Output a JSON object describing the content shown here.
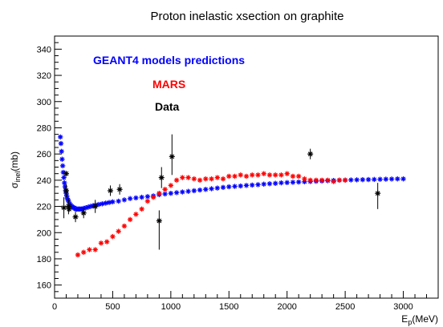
{
  "chart_data": {
    "type": "scatter",
    "title": "Proton inelastic xsection on graphite",
    "xlabel": {
      "main": "E",
      "sub": "p",
      "suffix": "(MeV)"
    },
    "ylabel": {
      "main": "σ",
      "sub": "inel",
      "suffix": "(mb)"
    },
    "xlim": [
      0,
      3300
    ],
    "ylim": [
      150,
      350
    ],
    "x_ticks": [
      0,
      500,
      1000,
      1500,
      2000,
      2500,
      3000
    ],
    "y_ticks": [
      160,
      180,
      200,
      220,
      240,
      260,
      280,
      300,
      320,
      340
    ],
    "colors": {
      "geant4": "#0000ff",
      "mars": "#ff0000",
      "data": "#000000"
    },
    "legend": [
      {
        "text": "GEANT4 models predictions",
        "color": "#0000ff"
      },
      {
        "text": "MARS",
        "color": "#ff0000"
      },
      {
        "text": "Data",
        "color": "#000000"
      }
    ],
    "series": [
      {
        "key": "geant4",
        "x": [
          50,
          55,
          60,
          65,
          70,
          75,
          80,
          85,
          90,
          95,
          100,
          105,
          110,
          115,
          120,
          130,
          140,
          150,
          160,
          170,
          180,
          190,
          200,
          210,
          220,
          230,
          240,
          250,
          270,
          290,
          310,
          330,
          350,
          380,
          410,
          440,
          470,
          500,
          550,
          600,
          650,
          700,
          750,
          800,
          850,
          900,
          950,
          1000,
          1050,
          1100,
          1150,
          1200,
          1250,
          1300,
          1350,
          1400,
          1450,
          1500,
          1550,
          1600,
          1650,
          1700,
          1750,
          1800,
          1850,
          1900,
          1950,
          2000,
          2050,
          2100,
          2150,
          2200,
          2250,
          2300,
          2350,
          2400,
          2450,
          2500,
          2550,
          2600,
          2650,
          2700,
          2750,
          2800,
          2850,
          2900,
          2950,
          3000
        ],
        "y": [
          273,
          268,
          262,
          256,
          251,
          246,
          242,
          238,
          235,
          232,
          230,
          228,
          226,
          225,
          224,
          222,
          221,
          220,
          219,
          219,
          218,
          218,
          218,
          218,
          218,
          218,
          218,
          218.5,
          219,
          219.5,
          220,
          220.5,
          221,
          221.5,
          222,
          222.5,
          223,
          223.5,
          224,
          225,
          226,
          226.5,
          227,
          227.5,
          228,
          229,
          229.5,
          230,
          230.5,
          231,
          231.5,
          232,
          232.5,
          233,
          233.5,
          234,
          234.5,
          235,
          235.3,
          235.6,
          236,
          236.3,
          236.6,
          237,
          237.3,
          237.6,
          238,
          238.2,
          238.4,
          238.6,
          238.8,
          239,
          239.2,
          239.4,
          239.6,
          239.8,
          240,
          240.1,
          240.2,
          240.3,
          240.4,
          240.5,
          240.6,
          240.7,
          240.8,
          240.9,
          241,
          241
        ]
      },
      {
        "key": "mars",
        "x": [
          200,
          250,
          300,
          350,
          400,
          450,
          500,
          550,
          600,
          650,
          700,
          750,
          800,
          850,
          900,
          950,
          1000,
          1050,
          1100,
          1150,
          1200,
          1250,
          1300,
          1350,
          1400,
          1450,
          1500,
          1550,
          1600,
          1650,
          1700,
          1750,
          1800,
          1850,
          1900,
          1950,
          2000,
          2050,
          2100,
          2150,
          2200,
          2250,
          2300,
          2350,
          2400,
          2450,
          2500
        ],
        "y": [
          183,
          185,
          187,
          187,
          192,
          193,
          197,
          201,
          205,
          210,
          214,
          218,
          224,
          227,
          230,
          233,
          236,
          240,
          242,
          242,
          241,
          240,
          241,
          241,
          242,
          241,
          243,
          243,
          244,
          243,
          244,
          244,
          245,
          244,
          244,
          244,
          245,
          243,
          243,
          241,
          240,
          240,
          240,
          240,
          239,
          240,
          240
        ]
      }
    ],
    "data_points": {
      "x": [
        80,
        100,
        120,
        100,
        125,
        180,
        250,
        350,
        480,
        560,
        900,
        920,
        1010,
        2200,
        2780
      ],
      "y": [
        219,
        245,
        220,
        232,
        218,
        212,
        215,
        220,
        232,
        233,
        209,
        242,
        258,
        260,
        230
      ],
      "yerr_low": [
        8,
        0,
        6,
        5,
        0,
        4,
        4,
        5,
        4,
        4,
        22,
        8,
        14,
        4,
        12
      ],
      "yerr_high": [
        8,
        0,
        6,
        5,
        0,
        4,
        4,
        5,
        4,
        4,
        8,
        8,
        17,
        4,
        8
      ]
    }
  }
}
